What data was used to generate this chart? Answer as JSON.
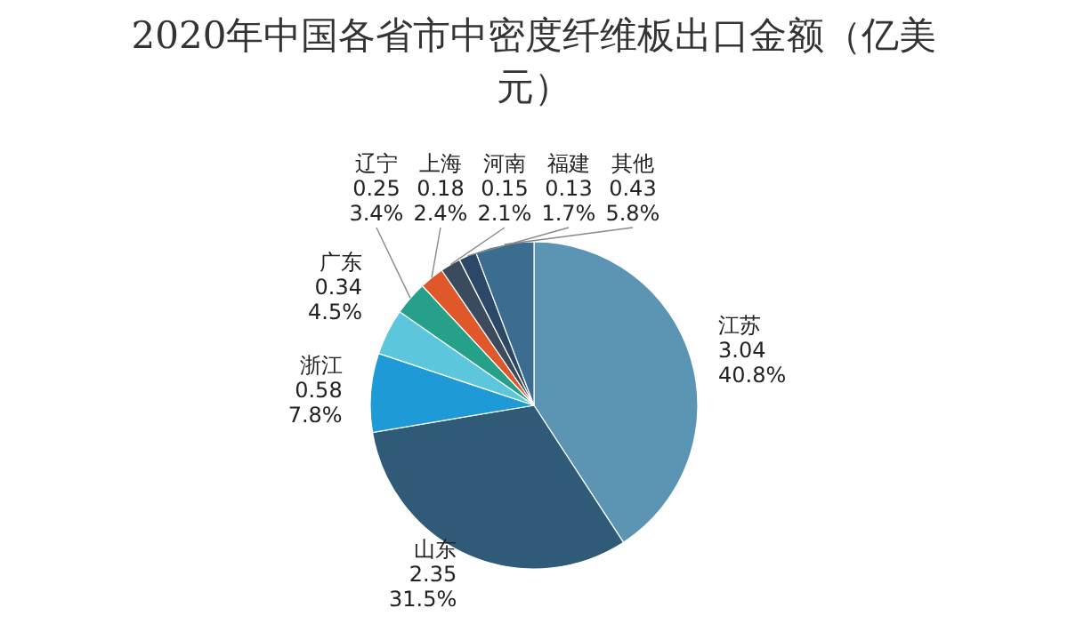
{
  "chart_data": {
    "type": "pie",
    "title": "2020年中国各省市中密度纤维板出口金额（亿美元）",
    "categories": [
      "江苏",
      "山东",
      "浙江",
      "广东",
      "辽宁",
      "上海",
      "河南",
      "福建",
      "其他"
    ],
    "values": [
      3.04,
      2.35,
      0.58,
      0.34,
      0.25,
      0.18,
      0.15,
      0.13,
      0.43
    ],
    "value_labels": [
      "3.04\n40.8%",
      "2.35\n31.5%",
      "0.58\n7.8%",
      "0.34\n4.5%",
      "0.25\n3.4%",
      "0.18\n2.4%",
      "0.15\n2.1%",
      "0.13\n1.7%",
      "0.43\n5.8%"
    ],
    "colors": [
      "#5b95b3",
      "#2f5b78",
      "#1e9ad6",
      "#5cc6dc",
      "#27a08a",
      "#e0582a",
      "#3b4a5c",
      "#2b4868",
      "#3a6d8f"
    ],
    "legend": false
  }
}
